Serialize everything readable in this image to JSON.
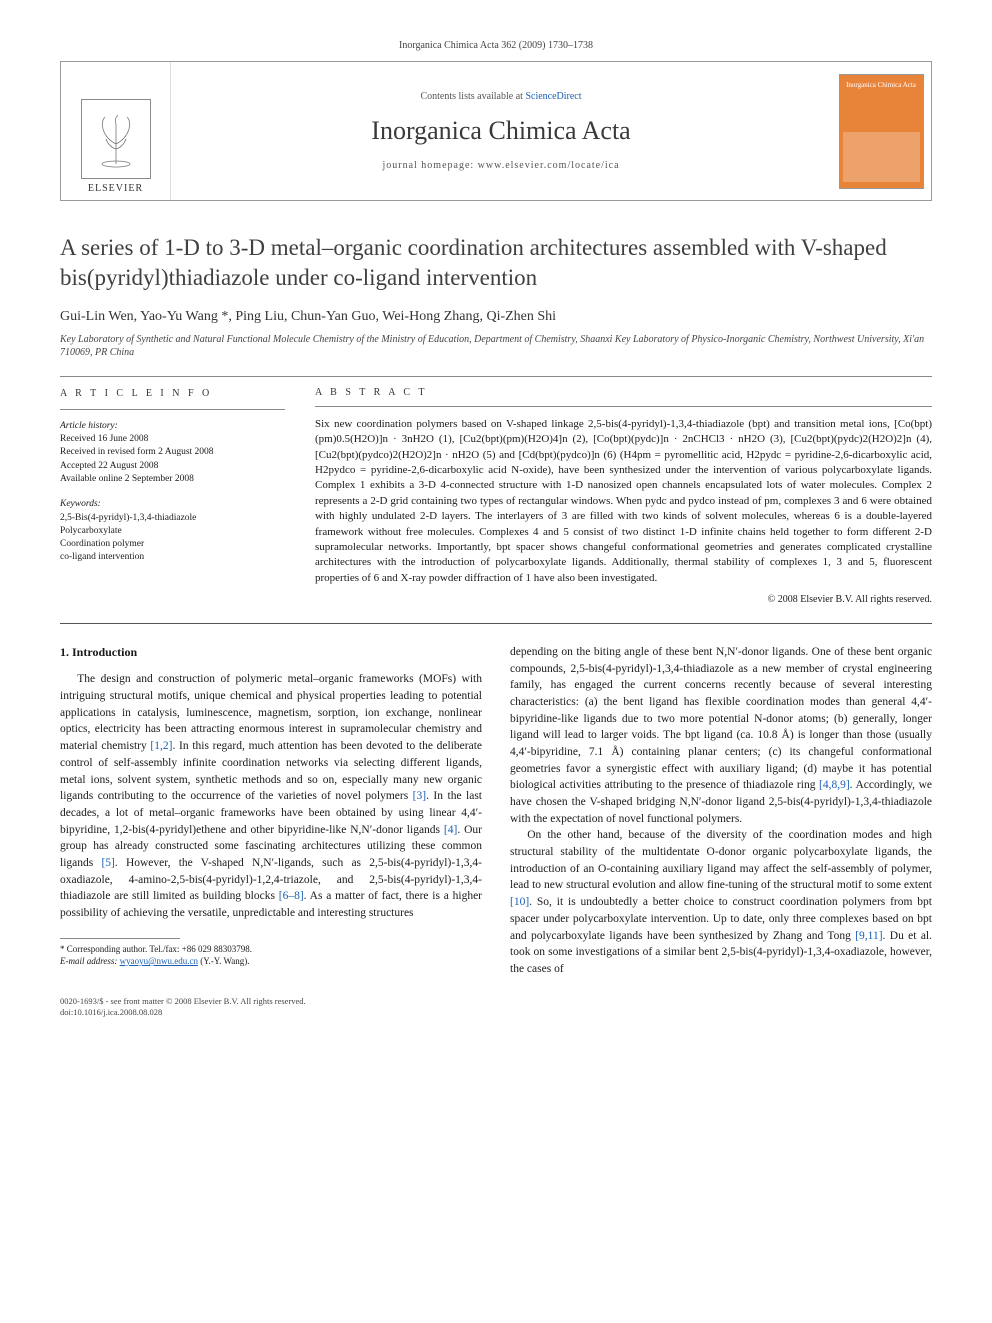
{
  "header_meta": "Inorganica Chimica Acta 362 (2009) 1730–1738",
  "banner": {
    "contents_prefix": "Contents lists available at ",
    "contents_link": "ScienceDirect",
    "journal_title": "Inorganica Chimica Acta",
    "homepage_prefix": "journal homepage: ",
    "homepage_url": "www.elsevier.com/locate/ica",
    "elsevier": "ELSEVIER",
    "cover_text": "Inorganica Chimica Acta"
  },
  "article": {
    "title": "A series of 1-D to 3-D metal–organic coordination architectures assembled with V-shaped bis(pyridyl)thiadiazole under co-ligand intervention",
    "authors": "Gui-Lin Wen, Yao-Yu Wang *, Ping Liu, Chun-Yan Guo, Wei-Hong Zhang, Qi-Zhen Shi",
    "affiliation": "Key Laboratory of Synthetic and Natural Functional Molecule Chemistry of the Ministry of Education, Department of Chemistry, Shaanxi Key Laboratory of Physico-Inorganic Chemistry, Northwest University, Xi'an 710069, PR China"
  },
  "info": {
    "heading": "A R T I C L E   I N F O",
    "history_label": "Article history:",
    "received": "Received 16 June 2008",
    "revised": "Received in revised form 2 August 2008",
    "accepted": "Accepted 22 August 2008",
    "online": "Available online 2 September 2008",
    "keywords_label": "Keywords:",
    "kw1": "2,5-Bis(4-pyridyl)-1,3,4-thiadiazole",
    "kw2": "Polycarboxylate",
    "kw3": "Coordination polymer",
    "kw4": "co-ligand intervention"
  },
  "abstract": {
    "heading": "A B S T R A C T",
    "text": "Six new coordination polymers based on V-shaped linkage 2,5-bis(4-pyridyl)-1,3,4-thiadiazole (bpt) and transition metal ions, [Co(bpt)(pm)0.5(H2O)]n · 3nH2O (1), [Cu2(bpt)(pm)(H2O)4]n (2), [Co(bpt)(pydc)]n · 2nCHCl3 · nH2O (3), [Cu2(bpt)(pydc)2(H2O)2]n (4), [Cu2(bpt)(pydco)2(H2O)2]n · nH2O (5) and [Cd(bpt)(pydco)]n (6) (H4pm = pyromellitic acid, H2pydc = pyridine-2,6-dicarboxylic acid, H2pydco = pyridine-2,6-dicarboxylic acid N-oxide), have been synthesized under the intervention of various polycarboxylate ligands. Complex 1 exhibits a 3-D 4-connected structure with 1-D nanosized open channels encapsulated lots of water molecules. Complex 2 represents a 2-D grid containing two types of rectangular windows. When pydc and pydco instead of pm, complexes 3 and 6 were obtained with highly undulated 2-D layers. The interlayers of 3 are filled with two kinds of solvent molecules, whereas 6 is a double-layered framework without free molecules. Complexes 4 and 5 consist of two distinct 1-D infinite chains held together to form different 2-D supramolecular networks. Importantly, bpt spacer shows changeful conformational geometries and generates complicated crystalline architectures with the introduction of polycarboxylate ligands. Additionally, thermal stability of complexes 1, 3 and 5, fluorescent properties of 6 and X-ray powder diffraction of 1 have also been investigated.",
    "copyright": "© 2008 Elsevier B.V. All rights reserved."
  },
  "body": {
    "section_heading": "1. Introduction",
    "col1": "The design and construction of polymeric metal–organic frameworks (MOFs) with intriguing structural motifs, unique chemical and physical properties leading to potential applications in catalysis, luminescence, magnetism, sorption, ion exchange, nonlinear optics, electricity has been attracting enormous interest in supramolecular chemistry and material chemistry [1,2]. In this regard, much attention has been devoted to the deliberate control of self-assembly infinite coordination networks via selecting different ligands, metal ions, solvent system, synthetic methods and so on, especially many new organic ligands contributing to the occurrence of the varieties of novel polymers [3]. In the last decades, a lot of metal–organic frameworks have been obtained by using linear 4,4′-bipyridine, 1,2-bis(4-pyridyl)ethene and other bipyridine-like N,N′-donor ligands [4]. Our group has already constructed some fascinating architectures utilizing these common ligands [5]. However, the V-shaped N,N′-ligands, such as 2,5-bis(4-pyridyl)-1,3,4-oxadiazole, 4-amino-2,5-bis(4-pyridyl)-1,2,4-triazole, and 2,5-bis(4-pyridyl)-1,3,4-thiadiazole are still limited as building blocks [6–8]. As a matter of fact, there is a higher possibility of achieving the versatile, unpredictable and interesting structures",
    "col2_p1": "depending on the biting angle of these bent N,N′-donor ligands. One of these bent organic compounds, 2,5-bis(4-pyridyl)-1,3,4-thiadiazole as a new member of crystal engineering family, has engaged the current concerns recently because of several interesting characteristics: (a) the bent ligand has flexible coordination modes than general 4,4′-bipyridine-like ligands due to two more potential N-donor atoms; (b) generally, longer ligand will lead to larger voids. The bpt ligand (ca. 10.8 Å) is longer than those (usually 4,4′-bipyridine, 7.1 Å) containing planar centers; (c) its changeful conformational geometries favor a synergistic effect with auxiliary ligand; (d) maybe it has potential biological activities attributing to the presence of thiadiazole ring [4,8,9]. Accordingly, we have chosen the V-shaped bridging N,N′-donor ligand 2,5-bis(4-pyridyl)-1,3,4-thiadiazole with the expectation of novel functional polymers.",
    "col2_p2": "On the other hand, because of the diversity of the coordination modes and high structural stability of the multidentate O-donor organic polycarboxylate ligands, the introduction of an O-containing auxiliary ligand may affect the self-assembly of polymer, lead to new structural evolution and allow fine-tuning of the structural motif to some extent [10]. So, it is undoubtedly a better choice to construct coordination polymers from bpt spacer under polycarboxylate intervention. Up to date, only three complexes based on bpt and polycarboxylate ligands have been synthesized by Zhang and Tong [9,11]. Du et al. took on some investigations of a similar bent 2,5-bis(4-pyridyl)-1,3,4-oxadiazole, however, the cases of"
  },
  "footnote": {
    "corr": "* Corresponding author. Tel./fax: +86 029 88303798.",
    "email_label": "E-mail address: ",
    "email": "wyaoyu@nwu.edu.cn",
    "email_suffix": " (Y.-Y. Wang)."
  },
  "footer": {
    "line1": "0020-1693/$ - see front matter © 2008 Elsevier B.V. All rights reserved.",
    "line2": "doi:10.1016/j.ica.2008.08.028"
  },
  "colors": {
    "link": "#1a5fb4",
    "cover_bg": "#e8833a",
    "text": "#1a1a1a",
    "border": "#999999"
  }
}
